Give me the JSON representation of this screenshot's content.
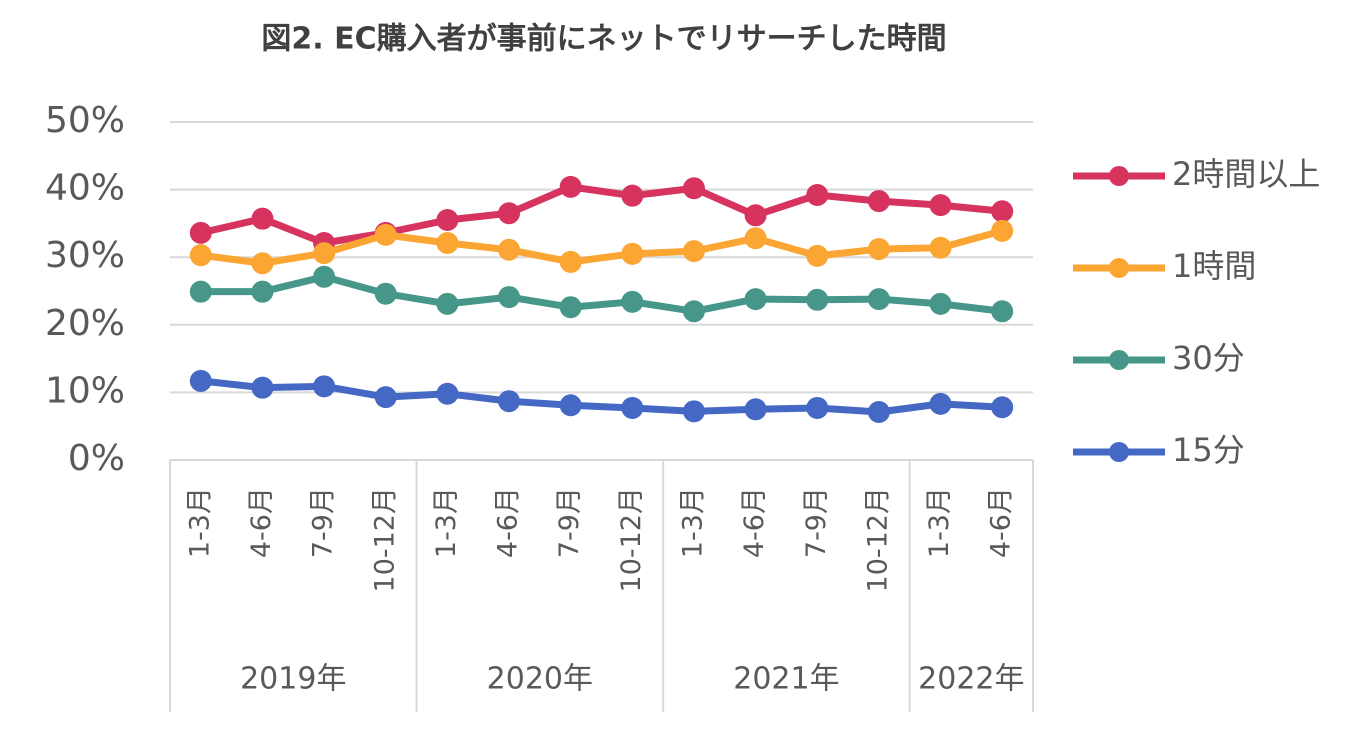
{
  "chart_data": {
    "type": "line",
    "title": "図2. EC購入者が事前にネットでリサーチした時間",
    "groups": [
      {
        "name": "2019年",
        "categories": [
          "1-3月",
          "4-6月",
          "7-9月",
          "10-12月"
        ]
      },
      {
        "name": "2020年",
        "categories": [
          "1-3月",
          "4-6月",
          "7-9月",
          "10-12月"
        ]
      },
      {
        "name": "2021年",
        "categories": [
          "1-3月",
          "4-6月",
          "7-9月",
          "10-12月"
        ]
      },
      {
        "name": "2022年",
        "categories": [
          "1-3月",
          "4-6月"
        ]
      }
    ],
    "series": [
      {
        "name": "2時間以上",
        "color": "#d6335f",
        "values": [
          33.6,
          35.7,
          32.1,
          33.6,
          35.5,
          36.5,
          40.4,
          39.1,
          40.2,
          36.2,
          39.2,
          38.3,
          37.7,
          36.8
        ]
      },
      {
        "name": "1時間",
        "color": "#fba533",
        "values": [
          30.3,
          29.1,
          30.6,
          33.3,
          32.1,
          31.1,
          29.3,
          30.5,
          30.9,
          32.8,
          30.2,
          31.2,
          31.4,
          33.9
        ]
      },
      {
        "name": "30分",
        "color": "#46978a",
        "values": [
          24.9,
          24.9,
          27.1,
          24.6,
          23.1,
          24.1,
          22.6,
          23.4,
          22.0,
          23.8,
          23.7,
          23.8,
          23.1,
          22.0
        ]
      },
      {
        "name": "15分",
        "color": "#4668c5",
        "values": [
          11.7,
          10.7,
          10.9,
          9.3,
          9.8,
          8.7,
          8.1,
          7.7,
          7.2,
          7.5,
          7.7,
          7.1,
          8.3,
          7.8
        ]
      }
    ],
    "ylim": [
      0,
      50
    ],
    "yticks": [
      {
        "value": 0,
        "label": "0%"
      },
      {
        "value": 10,
        "label": "10%"
      },
      {
        "value": 20,
        "label": "20%"
      },
      {
        "value": 30,
        "label": "30%"
      },
      {
        "value": 40,
        "label": "40%"
      },
      {
        "value": 50,
        "label": "50%"
      }
    ],
    "grid": true,
    "legend": "right"
  }
}
